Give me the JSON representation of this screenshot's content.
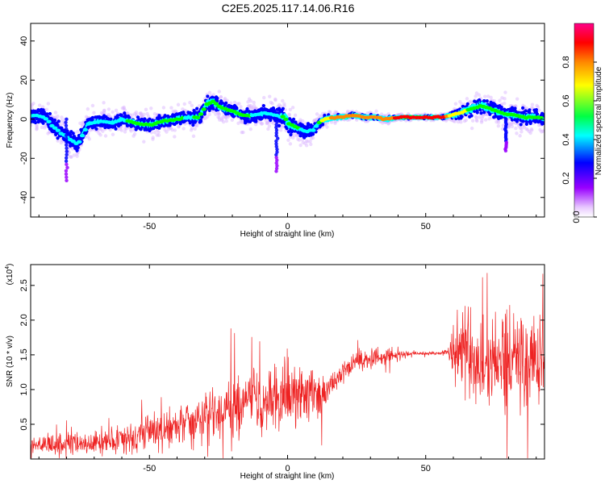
{
  "title": "C2E5.2025.117.14.06.R16",
  "colors": {
    "snr_line": "#ee2222",
    "axis": "#000000",
    "colormap": [
      "#ffffff",
      "#e8c8ff",
      "#9900ff",
      "#0000ff",
      "#00ffff",
      "#00ff00",
      "#ffff00",
      "#ff8800",
      "#ff0000",
      "#ff0088"
    ]
  },
  "chart_data": [
    {
      "type": "heatmap",
      "title": "C2E5.2025.117.14.06.R16",
      "xlabel": "Height of straight line (km)",
      "ylabel": "Frequency (Hz)",
      "xlim": [
        -93,
        93
      ],
      "ylim": [
        -50,
        49
      ],
      "xticks": [
        -50,
        0,
        50
      ],
      "yticks": [
        -40,
        -20,
        0,
        20,
        40
      ],
      "colorbar": {
        "label": "Normalized spectral amplitude",
        "range": [
          0,
          1
        ],
        "ticks": [
          "0.0",
          "0.2",
          "0.4",
          "0.6",
          "0.8"
        ]
      },
      "ridge": {
        "x": [
          -93,
          -88,
          -84,
          -80,
          -76,
          -72,
          -68,
          -64,
          -60,
          -55,
          -50,
          -45,
          -40,
          -36,
          -32,
          -29,
          -27,
          -24,
          -20,
          -16,
          -12,
          -8,
          -4,
          -1,
          0,
          3,
          6,
          9,
          12,
          16,
          20,
          24,
          28,
          32,
          36,
          40,
          46,
          52,
          56,
          59,
          62,
          66,
          70,
          74,
          78,
          82,
          86,
          90,
          93
        ],
        "y": [
          2,
          1,
          -5,
          -9,
          -13,
          -2,
          -1,
          -2,
          0,
          -2,
          -3,
          -1,
          0,
          1,
          1,
          8,
          9,
          6,
          4,
          2,
          2,
          3,
          2,
          1,
          -2,
          -4,
          -6,
          -6,
          -1,
          1,
          1,
          2,
          1,
          1,
          0,
          1,
          1,
          1,
          1,
          2,
          3,
          5,
          7,
          5,
          3,
          2,
          1,
          1,
          0
        ],
        "amplitude": [
          0.3,
          0.35,
          0.3,
          0.3,
          0.35,
          0.4,
          0.4,
          0.4,
          0.4,
          0.45,
          0.45,
          0.45,
          0.45,
          0.4,
          0.45,
          0.5,
          0.45,
          0.45,
          0.45,
          0.45,
          0.4,
          0.4,
          0.35,
          0.45,
          0.5,
          0.45,
          0.35,
          0.35,
          0.5,
          0.75,
          0.8,
          0.8,
          0.75,
          0.7,
          0.75,
          0.85,
          0.9,
          0.9,
          0.85,
          0.65,
          0.55,
          0.5,
          0.5,
          0.45,
          0.45,
          0.45,
          0.45,
          0.45,
          0.4
        ],
        "spread": [
          10,
          11,
          12,
          12,
          12,
          10,
          10,
          9,
          9,
          9,
          9,
          9,
          9,
          10,
          10,
          11,
          11,
          10,
          9,
          9,
          9,
          10,
          10,
          14,
          14,
          10,
          9,
          8,
          6,
          4,
          3,
          3,
          3,
          3,
          3,
          2,
          2,
          2,
          2,
          4,
          7,
          9,
          10,
          10,
          10,
          10,
          10,
          10,
          9
        ]
      },
      "spikes": [
        {
          "x": -80,
          "y": -33
        },
        {
          "x": -4,
          "y": -28
        },
        {
          "x": 79,
          "y": -17
        }
      ]
    },
    {
      "type": "line",
      "xlabel": "Height of straight line (km)",
      "ylabel": "SNR (10 * v/v)",
      "y_multiplier_label": "(x10",
      "y_multiplier_exponent": "4",
      "y_multiplier_close": ")",
      "xlim": [
        -93,
        93
      ],
      "ylim": [
        0,
        2.8
      ],
      "xticks": [
        -50,
        0,
        50
      ],
      "yticks": [
        0.5,
        1.0,
        1.5,
        2.0,
        2.5
      ],
      "ytick_labels": [
        "0.5",
        "1.0",
        "1.5",
        "2.0",
        "2.5"
      ],
      "series": [
        {
          "x": [
            -93,
            -80,
            -70,
            -60,
            -50,
            -40,
            -30,
            -20,
            -10,
            0,
            5,
            10,
            15,
            20,
            25,
            30,
            35,
            40,
            45,
            50,
            55,
            58,
            60,
            65,
            70,
            75,
            80,
            85,
            90,
            93
          ],
          "mean": [
            0.18,
            0.2,
            0.22,
            0.3,
            0.38,
            0.48,
            0.6,
            0.72,
            0.82,
            0.95,
            0.95,
            0.9,
            1.0,
            1.25,
            1.4,
            1.45,
            1.48,
            1.5,
            1.52,
            1.52,
            1.52,
            1.55,
            1.55,
            1.5,
            1.45,
            1.45,
            1.45,
            1.4,
            1.45,
            1.45
          ],
          "noise": [
            0.12,
            0.12,
            0.14,
            0.16,
            0.18,
            0.22,
            0.28,
            0.34,
            0.38,
            0.42,
            0.45,
            0.3,
            0.15,
            0.12,
            0.1,
            0.1,
            0.1,
            0.08,
            0.02,
            0.02,
            0.02,
            0.05,
            0.4,
            0.5,
            0.55,
            0.6,
            0.6,
            0.6,
            0.55,
            0.5
          ]
        }
      ]
    }
  ]
}
